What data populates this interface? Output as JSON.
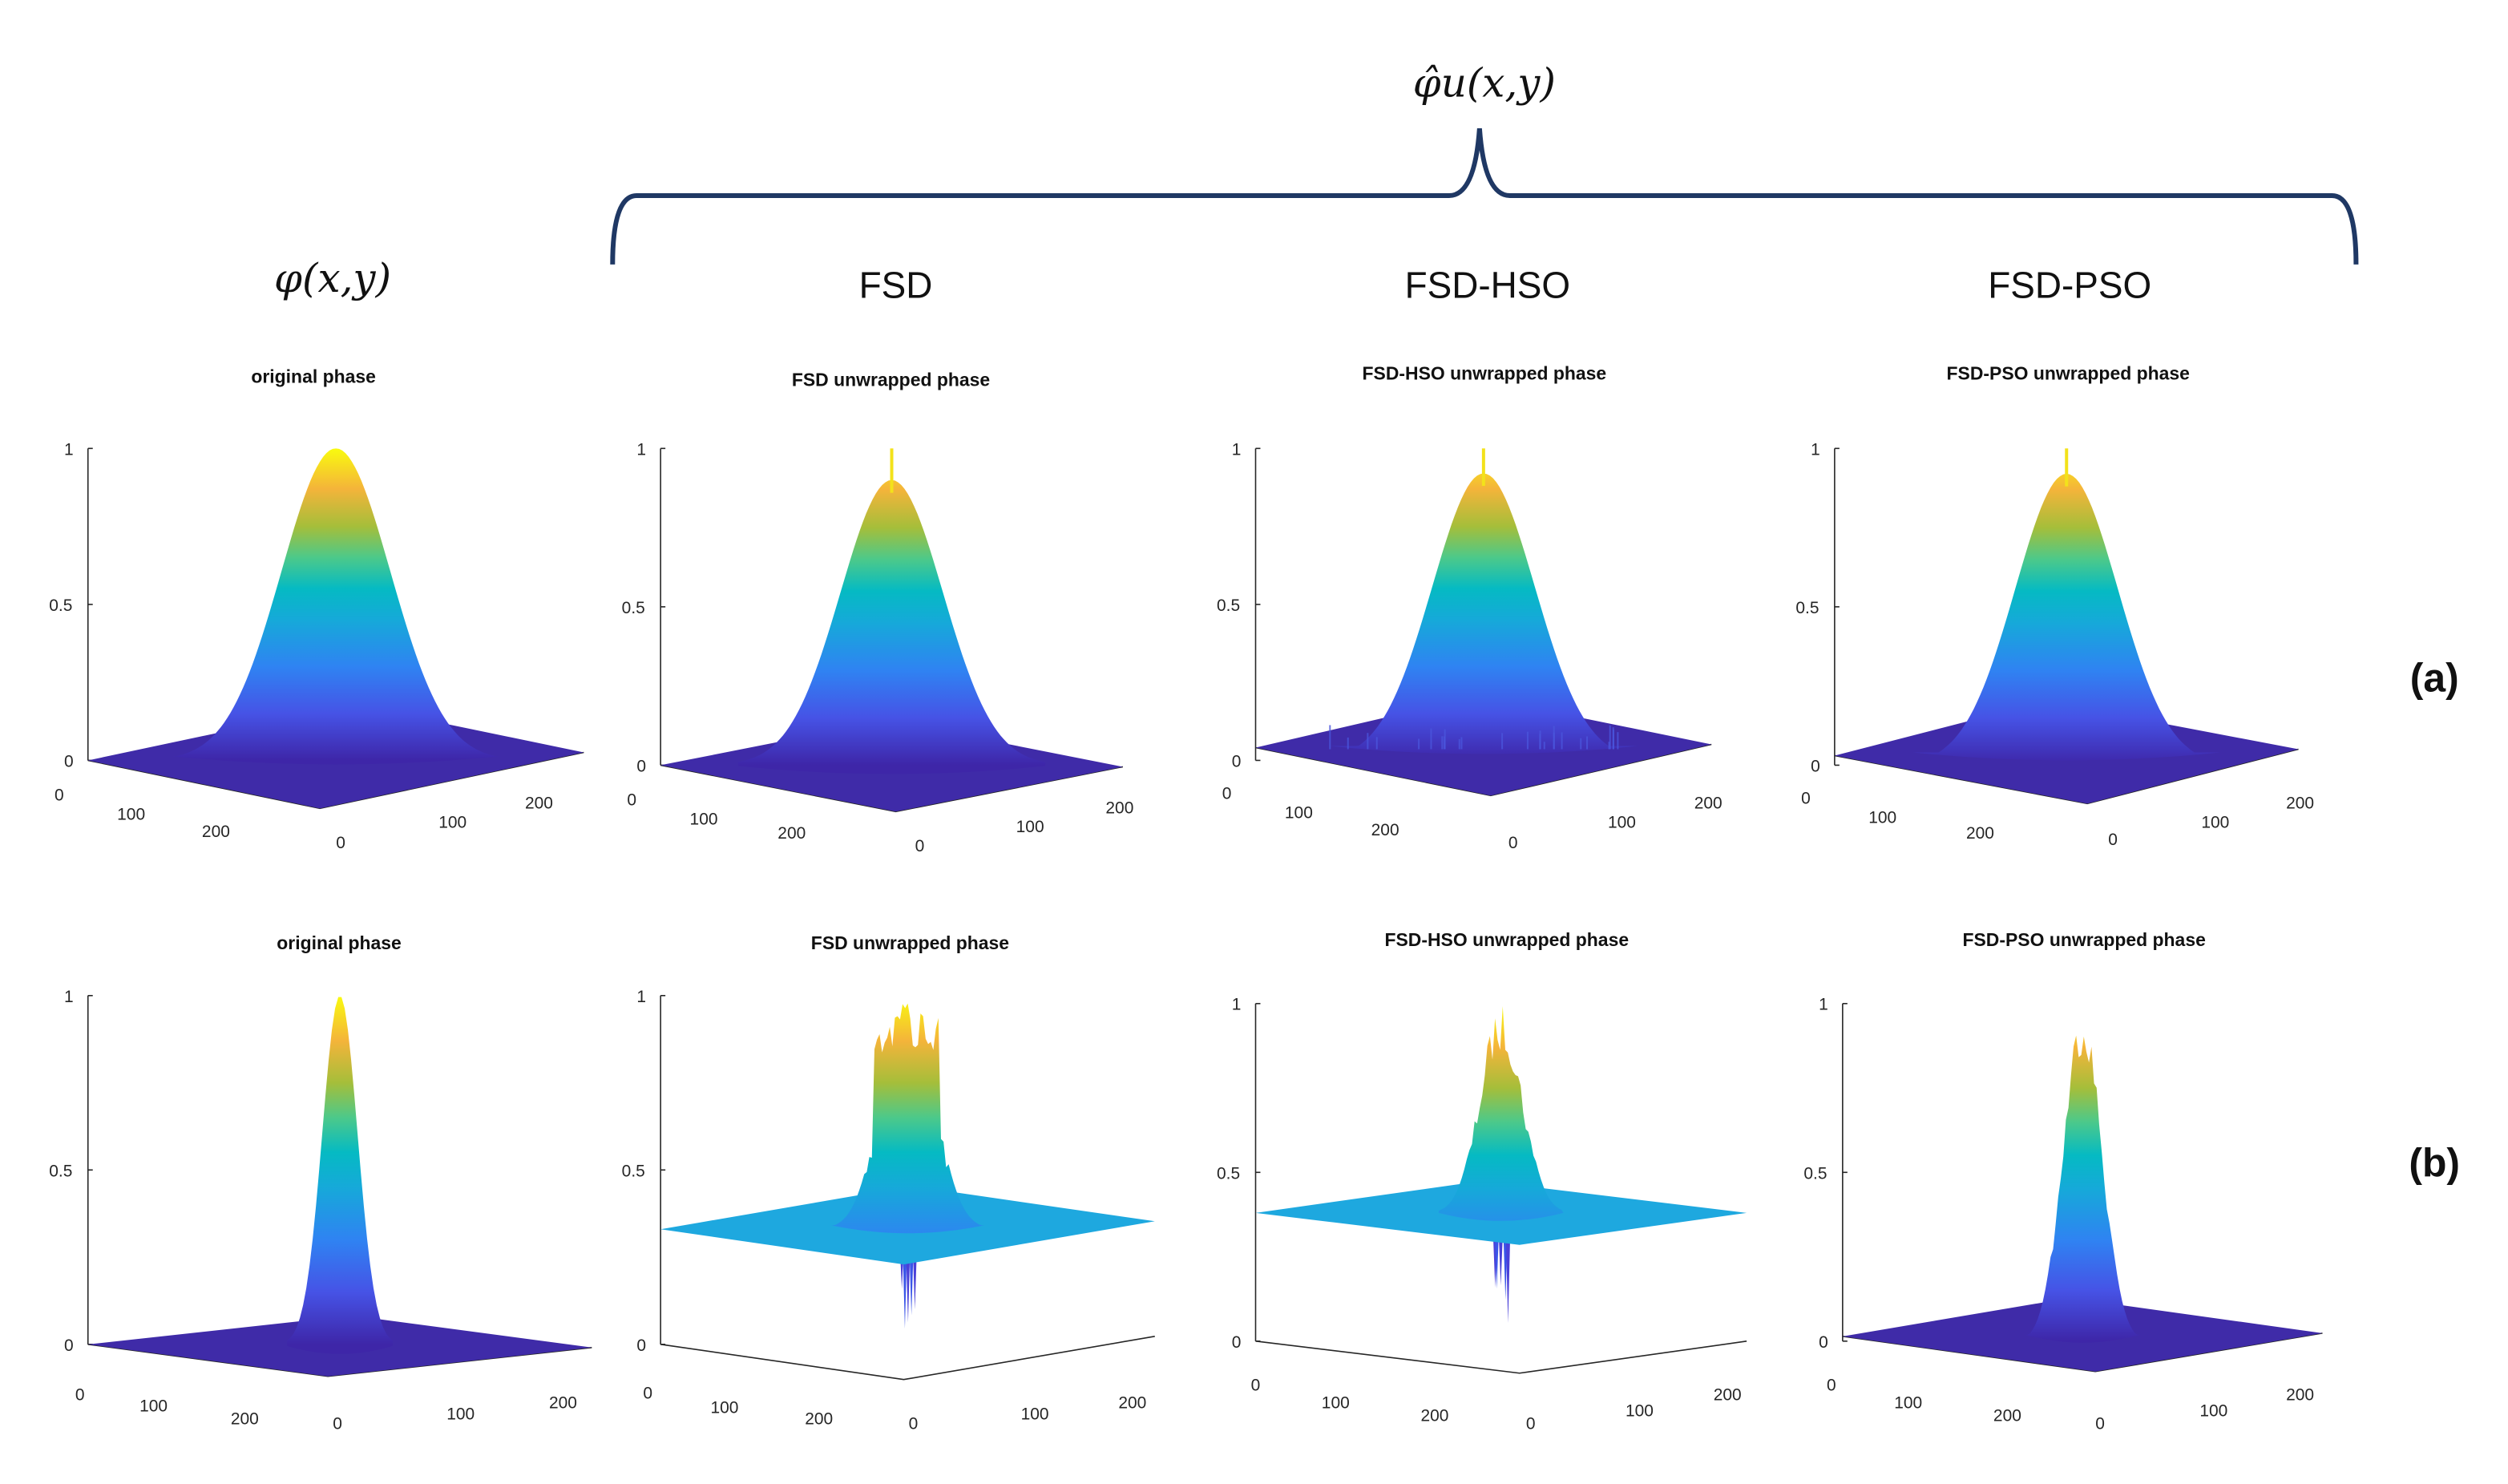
{
  "header": {
    "input_label": "φ(x,y)",
    "output_label": "φ̂u(x,y)",
    "columns": [
      "FSD",
      "FSD-HSO",
      "FSD-PSO"
    ],
    "row_labels": [
      "(a)",
      "(b)"
    ],
    "brace_color": "#1f3864"
  },
  "colormap": "parula",
  "chart_data": [
    {
      "type": "surface",
      "row": "(a)",
      "title": "original phase",
      "zlim": [
        0,
        1
      ],
      "z_ticks": [
        "0",
        "0.5",
        "1"
      ],
      "x_ticks": [
        "0",
        "100",
        "200"
      ],
      "y_ticks": [
        "0",
        "100",
        "200"
      ],
      "background_level": 0,
      "peak": 1,
      "noise": "none"
    },
    {
      "type": "surface",
      "row": "(a)",
      "title": "FSD unwrapped phase",
      "zlim": [
        0,
        1
      ],
      "z_ticks": [
        "0",
        "0.5",
        "1"
      ],
      "x_ticks": [
        "0",
        "100",
        "200"
      ],
      "y_ticks": [
        "0",
        "100",
        "200"
      ],
      "background_level": 0,
      "peak": 0.9,
      "spike_max": 1,
      "noise": "single spike at top"
    },
    {
      "type": "surface",
      "row": "(a)",
      "title": "FSD-HSO unwrapped phase",
      "zlim": [
        0,
        1
      ],
      "z_ticks": [
        "0",
        "0.5",
        "1"
      ],
      "x_ticks": [
        "0",
        "100",
        "200"
      ],
      "y_ticks": [
        "0",
        "100",
        "200"
      ],
      "background_level": 0,
      "peak": 0.92,
      "spike_max": 1,
      "noise": "ripples around base"
    },
    {
      "type": "surface",
      "row": "(a)",
      "title": "FSD-PSO unwrapped phase",
      "zlim": [
        0,
        1
      ],
      "z_ticks": [
        "0",
        "0.5",
        "1"
      ],
      "x_ticks": [
        "0",
        "100",
        "200"
      ],
      "y_ticks": [
        "0",
        "100",
        "200"
      ],
      "background_level": 0,
      "peak": 0.92,
      "spike_max": 1,
      "noise": "single spike at top"
    },
    {
      "type": "surface",
      "row": "(b)",
      "title": "original phase",
      "zlim": [
        0,
        1
      ],
      "z_ticks": [
        "0",
        "0.5",
        "1"
      ],
      "x_ticks": [
        "0",
        "100",
        "200"
      ],
      "y_ticks": [
        "0",
        "100",
        "200"
      ],
      "background_level": 0,
      "peak": 1,
      "noise": "none"
    },
    {
      "type": "surface",
      "row": "(b)",
      "title": "FSD unwrapped phase",
      "zlim": [
        0,
        1
      ],
      "z_ticks": [
        "0",
        "0.5",
        "1"
      ],
      "x_ticks": [
        "0",
        "100",
        "200"
      ],
      "y_ticks": [
        "0",
        "100",
        "200"
      ],
      "background_level": 0.33,
      "peak": 1,
      "min": 0,
      "noise": "jagged peak, downward spikes"
    },
    {
      "type": "surface",
      "row": "(b)",
      "title": "FSD-HSO unwrapped phase",
      "zlim": [
        0,
        1
      ],
      "z_ticks": [
        "0",
        "0.5",
        "1"
      ],
      "x_ticks": [
        "0",
        "100",
        "200"
      ],
      "y_ticks": [
        "0",
        "100",
        "200"
      ],
      "background_level": 0.38,
      "peak": 1,
      "min": 0,
      "noise": "jagged peak, downward spikes"
    },
    {
      "type": "surface",
      "row": "(b)",
      "title": "FSD-PSO unwrapped phase",
      "zlim": [
        0,
        1
      ],
      "z_ticks": [
        "0",
        "0.5",
        "1"
      ],
      "x_ticks": [
        "0",
        "100",
        "200"
      ],
      "y_ticks": [
        "0",
        "100",
        "200"
      ],
      "background_level": 0,
      "peak": 1,
      "noise": "jagged peak"
    }
  ]
}
